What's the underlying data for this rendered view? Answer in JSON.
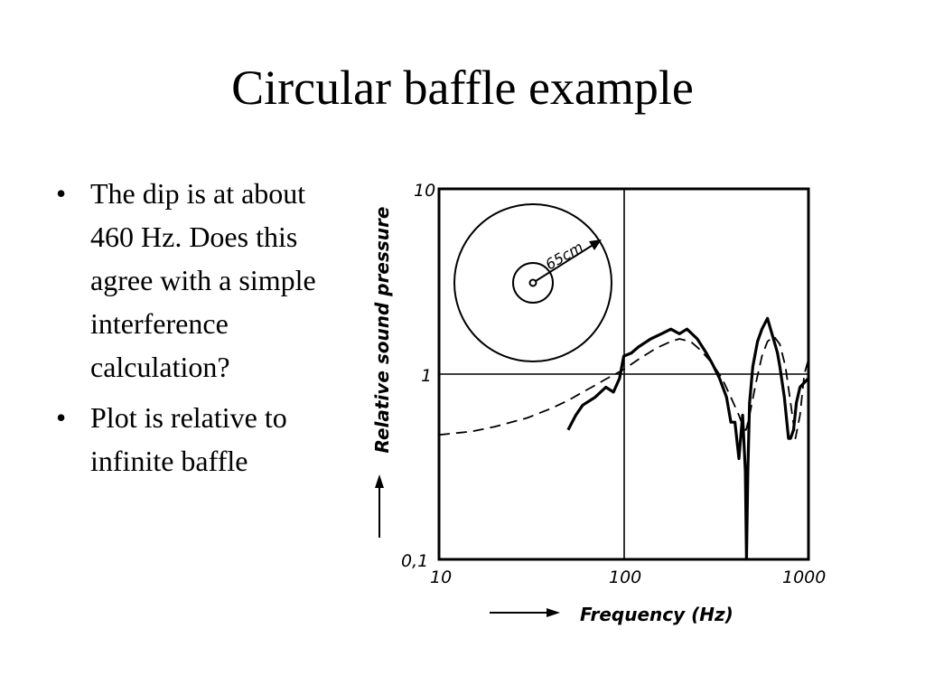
{
  "title": "Circular baffle example",
  "bullets": [
    "The dip is at about 460 Hz. Does this agree with a simple interference calculation?",
    "Plot is relative to infinite baffle"
  ],
  "colors": {
    "ink": "#000000",
    "background": "#ffffff"
  },
  "chart_data": {
    "type": "line",
    "xscale": "log",
    "yscale": "log",
    "xlim": [
      10,
      1000
    ],
    "ylim": [
      0.1,
      10
    ],
    "xlabel": "Frequency (Hz)",
    "ylabel": "Relative sound pressure",
    "x_ticks": [
      "10",
      "100",
      "1000"
    ],
    "y_ticks": [
      "0,1",
      "1",
      "10"
    ],
    "grid": "lines at x=100 and y=1",
    "inset_label": "65cm",
    "series": [
      {
        "style": "solid",
        "x": [
          50,
          55,
          60,
          70,
          80,
          88,
          95,
          100,
          110,
          120,
          140,
          160,
          180,
          200,
          220,
          250,
          280,
          300,
          330,
          360,
          380,
          400,
          420,
          440,
          455,
          462,
          470,
          480,
          500,
          530,
          560,
          600,
          640,
          680,
          700,
          740,
          780,
          800,
          830,
          860,
          900,
          950,
          1000
        ],
        "y": [
          0.5,
          0.6,
          0.68,
          0.75,
          0.85,
          0.8,
          0.95,
          1.25,
          1.3,
          1.4,
          1.55,
          1.65,
          1.75,
          1.65,
          1.75,
          1.55,
          1.3,
          1.15,
          0.95,
          0.75,
          0.55,
          0.55,
          0.35,
          0.6,
          0.3,
          0.1,
          0.3,
          0.7,
          1.1,
          1.5,
          1.75,
          2.0,
          1.6,
          1.3,
          1.1,
          0.75,
          0.45,
          0.45,
          0.5,
          0.7,
          0.85,
          0.9,
          0.95
        ]
      },
      {
        "style": "dashed",
        "x": [
          10,
          15,
          20,
          30,
          40,
          50,
          60,
          70,
          80,
          90,
          100,
          120,
          150,
          180,
          200,
          230,
          260,
          300,
          340,
          380,
          420,
          450,
          460,
          480,
          520,
          560,
          600,
          650,
          700,
          750,
          800,
          850,
          900,
          950,
          1000
        ],
        "y": [
          0.47,
          0.49,
          0.52,
          0.58,
          0.65,
          0.72,
          0.8,
          0.87,
          0.94,
          1.0,
          1.06,
          1.2,
          1.38,
          1.5,
          1.55,
          1.5,
          1.35,
          1.15,
          0.95,
          0.75,
          0.6,
          0.5,
          0.5,
          0.6,
          0.9,
          1.25,
          1.5,
          1.6,
          1.45,
          1.1,
          0.7,
          0.45,
          0.6,
          1.0,
          1.2
        ]
      }
    ]
  }
}
